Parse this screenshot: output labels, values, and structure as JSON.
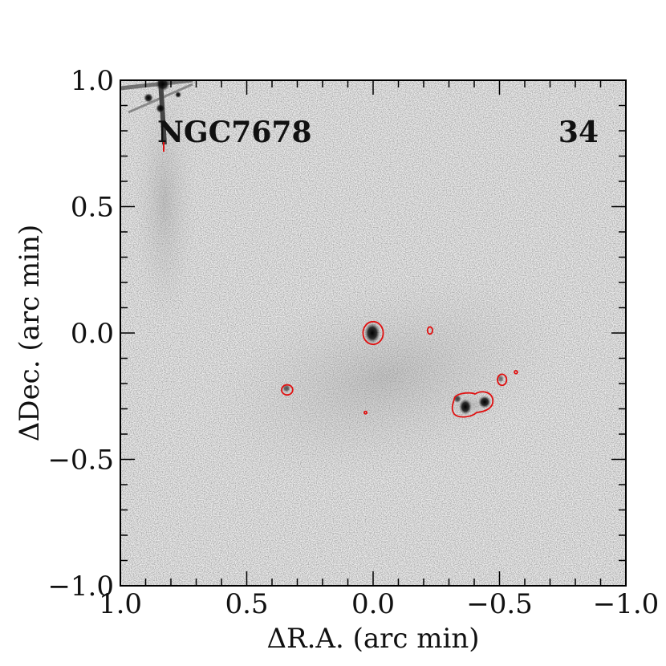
{
  "chart_data": {
    "type": "image",
    "object_label": "NGC7678",
    "panel_number": "34",
    "xlabel": "ΔR.A. (arc min)",
    "ylabel": "ΔDec. (arc min)",
    "xlim": [
      1.0,
      -1.0
    ],
    "ylim": [
      -1.0,
      1.0
    ],
    "x_ticks": [
      {
        "value": 1.0,
        "label": "1.0"
      },
      {
        "value": 0.5,
        "label": "0.5"
      },
      {
        "value": 0.0,
        "label": "0.0"
      },
      {
        "value": -0.5,
        "label": "−0.5"
      },
      {
        "value": -1.0,
        "label": "−1.0"
      }
    ],
    "y_ticks": [
      {
        "value": 1.0,
        "label": "1.0"
      },
      {
        "value": 0.5,
        "label": "0.5"
      },
      {
        "value": 0.0,
        "label": "0.0"
      },
      {
        "value": -0.5,
        "label": "−0.5"
      },
      {
        "value": -1.0,
        "label": "−1.0"
      }
    ],
    "colormap": "greyscale",
    "contour_color": "#e01010",
    "contours": [
      {
        "name": "contour-nucleus",
        "ra": 0.0,
        "dec": 0.0,
        "rx": 0.04,
        "ry": 0.045
      },
      {
        "name": "contour-east-knot",
        "ra": 0.34,
        "dec": -0.225,
        "rx": 0.022,
        "ry": 0.02
      },
      {
        "name": "contour-small-north",
        "ra": -0.225,
        "dec": 0.01,
        "rx": 0.01,
        "ry": 0.014
      },
      {
        "name": "contour-small-west",
        "ra": -0.51,
        "dec": -0.185,
        "rx": 0.018,
        "ry": 0.022
      },
      {
        "name": "contour-dot-west",
        "ra": -0.565,
        "dec": -0.155,
        "rx": 0.006,
        "ry": 0.006
      },
      {
        "name": "contour-dot-south",
        "ra": 0.03,
        "dec": -0.315,
        "rx": 0.005,
        "ry": 0.005
      }
    ]
  }
}
